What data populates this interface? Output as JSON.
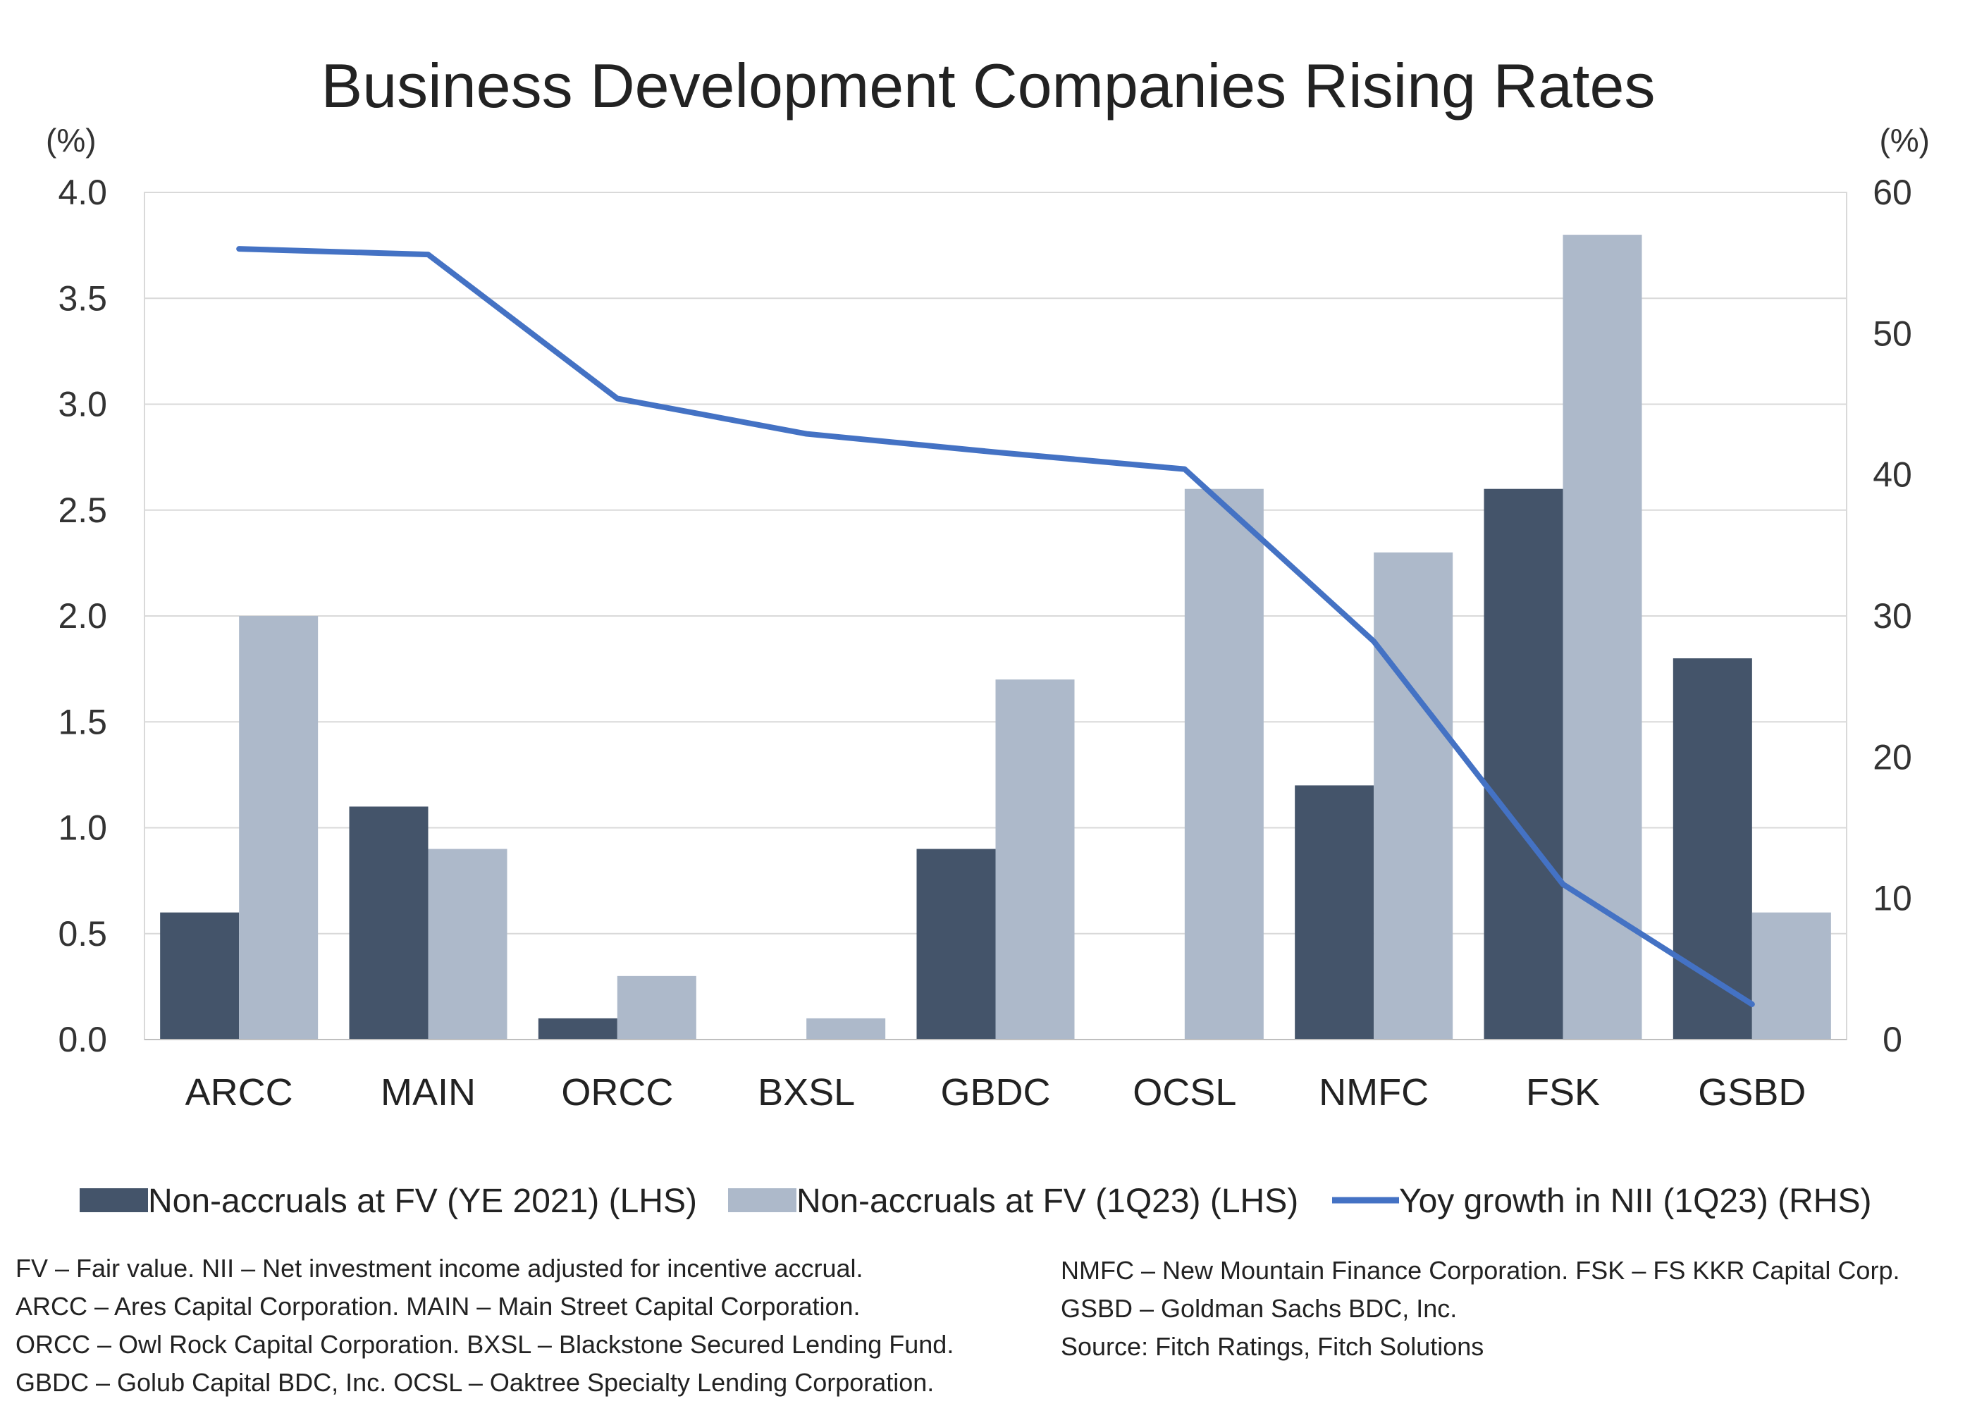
{
  "chart_data": {
    "type": "bar",
    "title": "Business Development Companies Rising Rates",
    "y_left_unit": "(%)",
    "y_right_unit": "(%)",
    "categories": [
      "ARCC",
      "MAIN",
      "ORCC",
      "BXSL",
      "GBDC",
      "OCSL",
      "NMFC",
      "FSK",
      "GSBD"
    ],
    "series": [
      {
        "name": "Non-accruals at FV (YE 2021) (LHS)",
        "type": "bar",
        "axis": "left",
        "color": "#44546a",
        "values": [
          0.6,
          1.1,
          0.1,
          0.0,
          0.9,
          0.0,
          1.2,
          2.6,
          1.8
        ]
      },
      {
        "name": "Non-accruals at FV (1Q23) (LHS)",
        "type": "bar",
        "axis": "left",
        "color": "#adb9ca",
        "values": [
          2.0,
          0.9,
          0.3,
          0.1,
          1.7,
          2.6,
          2.3,
          3.8,
          0.6
        ]
      },
      {
        "name": "Yoy growth in NII (1Q23) (RHS)",
        "type": "line",
        "axis": "right",
        "color": "#4472c4",
        "values": [
          56.0,
          55.6,
          45.4,
          42.9,
          41.6,
          40.4,
          28.2,
          11.0,
          2.5
        ]
      }
    ],
    "y_left": {
      "min": 0,
      "max": 4.0,
      "ticks": [
        "0.0",
        "0.5",
        "1.0",
        "1.5",
        "2.0",
        "2.5",
        "3.0",
        "3.5",
        "4.0"
      ]
    },
    "y_right": {
      "min": 0,
      "max": 60,
      "ticks": [
        "0",
        "10",
        "20",
        "30",
        "40",
        "50",
        "60"
      ]
    },
    "grid": true,
    "legend": "bottom"
  },
  "footnotes": {
    "left": [
      "FV – Fair value. NII – Net investment income adjusted for incentive accrual.",
      "ARCC – Ares Capital Corporation. MAIN – Main Street Capital Corporation.",
      "ORCC – Owl Rock Capital Corporation. BXSL – Blackstone Secured Lending Fund.",
      "GBDC – Golub Capital BDC, Inc. OCSL – Oaktree Specialty Lending Corporation."
    ],
    "right": [
      "NMFC – New Mountain Finance Corporation. FSK – FS KKR Capital Corp.",
      "GSBD – Goldman Sachs BDC, Inc.",
      "Source: Fitch Ratings, Fitch Solutions"
    ]
  }
}
